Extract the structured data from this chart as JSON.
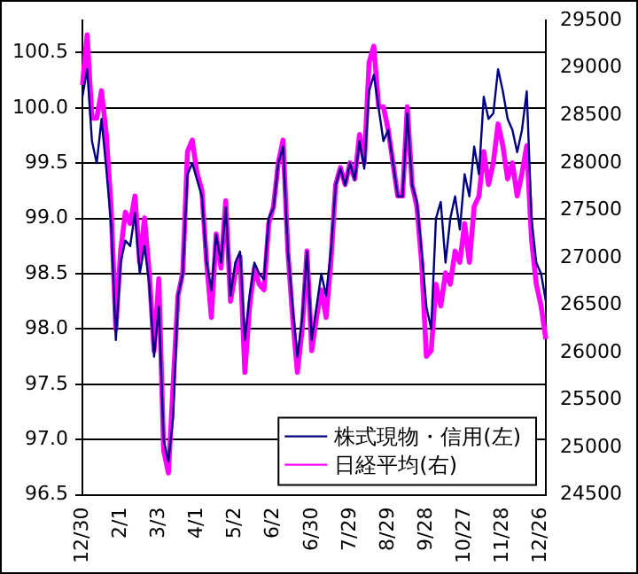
{
  "chart_data": {
    "type": "line",
    "categories": [
      "12/30",
      null,
      null,
      null,
      null,
      null,
      null,
      null,
      "2/1",
      null,
      null,
      null,
      null,
      null,
      null,
      null,
      "3/3",
      null,
      null,
      null,
      null,
      null,
      null,
      null,
      "4/1",
      null,
      null,
      null,
      null,
      null,
      null,
      null,
      "5/2",
      null,
      null,
      null,
      null,
      null,
      null,
      null,
      "6/2",
      null,
      null,
      null,
      null,
      null,
      null,
      null,
      "6/30",
      null,
      null,
      null,
      null,
      null,
      null,
      null,
      "7/29",
      null,
      null,
      null,
      null,
      null,
      null,
      null,
      "8/29",
      null,
      null,
      null,
      null,
      null,
      null,
      null,
      "9/28",
      null,
      null,
      null,
      null,
      null,
      null,
      null,
      "10/27",
      null,
      null,
      null,
      null,
      null,
      null,
      null,
      "11/28",
      null,
      null,
      null,
      null,
      null,
      null,
      null,
      "12/26",
      null
    ],
    "series": [
      {
        "name": "株式現物・信用(左)",
        "color": "#000080",
        "values": [
          100.1,
          100.35,
          99.7,
          99.5,
          99.9,
          99.45,
          98.95,
          97.9,
          98.6,
          98.8,
          98.75,
          99.05,
          98.5,
          98.75,
          98.4,
          97.75,
          98.2,
          97.0,
          96.8,
          97.2,
          98.3,
          98.5,
          99.4,
          99.5,
          99.35,
          99.2,
          98.6,
          98.35,
          98.85,
          98.6,
          99.1,
          98.3,
          98.6,
          98.7,
          97.9,
          98.3,
          98.6,
          98.5,
          98.45,
          99.0,
          99.1,
          99.5,
          99.65,
          98.7,
          98.2,
          97.75,
          98.1,
          98.7,
          97.9,
          98.2,
          98.5,
          98.3,
          98.7,
          99.3,
          99.45,
          99.3,
          99.5,
          99.35,
          99.7,
          99.45,
          100.15,
          100.3,
          100.0,
          99.7,
          99.8,
          99.5,
          99.2,
          99.2,
          99.95,
          99.3,
          99.15,
          98.7,
          98.2,
          98.0,
          99.0,
          99.15,
          98.6,
          99.0,
          99.2,
          98.9,
          99.4,
          99.2,
          99.65,
          99.4,
          100.1,
          99.9,
          99.95,
          100.35,
          100.15,
          99.9,
          99.8,
          99.6,
          99.8,
          100.15,
          99.0,
          98.6,
          98.5,
          98.25
        ]
      },
      {
        "name": "日経平均(右)",
        "color": "#ff00ff",
        "axis": "y2",
        "values": [
          28820,
          29350,
          28470,
          28470,
          28760,
          28300,
          27540,
          26250,
          27070,
          27480,
          27360,
          27650,
          26950,
          27420,
          26840,
          26020,
          26780,
          24970,
          24730,
          25670,
          26600,
          26840,
          28120,
          28240,
          27890,
          27710,
          26950,
          26370,
          27250,
          26890,
          27600,
          26540,
          26840,
          27010,
          25790,
          26490,
          26890,
          26720,
          26660,
          27360,
          27540,
          28000,
          28240,
          27070,
          26370,
          25790,
          26250,
          27070,
          26020,
          26370,
          26660,
          26370,
          26950,
          27770,
          27950,
          27770,
          28000,
          27830,
          28300,
          28000,
          29060,
          29230,
          28590,
          28590,
          28350,
          28000,
          27650,
          27650,
          28590,
          27770,
          27540,
          26950,
          25960,
          26020,
          26720,
          26490,
          26840,
          26720,
          27070,
          26950,
          27360,
          26950,
          27540,
          27650,
          28120,
          27770,
          28000,
          28410,
          28180,
          27830,
          28000,
          27650,
          27890,
          28180,
          27190,
          26720,
          26490,
          26140
        ]
      }
    ],
    "ylim": [
      96.5,
      100.79
    ],
    "yticks": [
      96.5,
      {
        "value": 97,
        "label": "97.0"
      },
      97.5,
      {
        "value": 98,
        "label": "98.0"
      },
      98.5,
      {
        "value": 99,
        "label": "99.0"
      },
      99.5,
      {
        "value": 100,
        "label": "100.0"
      },
      100.5
    ],
    "y2lim": [
      24500,
      29500
    ],
    "y2ticks": [
      24500,
      25000,
      25500,
      26000,
      26500,
      27000,
      27500,
      28000,
      28500,
      29000,
      29500
    ],
    "grid": "y",
    "legend": "bottom right",
    "marker": "none",
    "line_style": "solid"
  }
}
